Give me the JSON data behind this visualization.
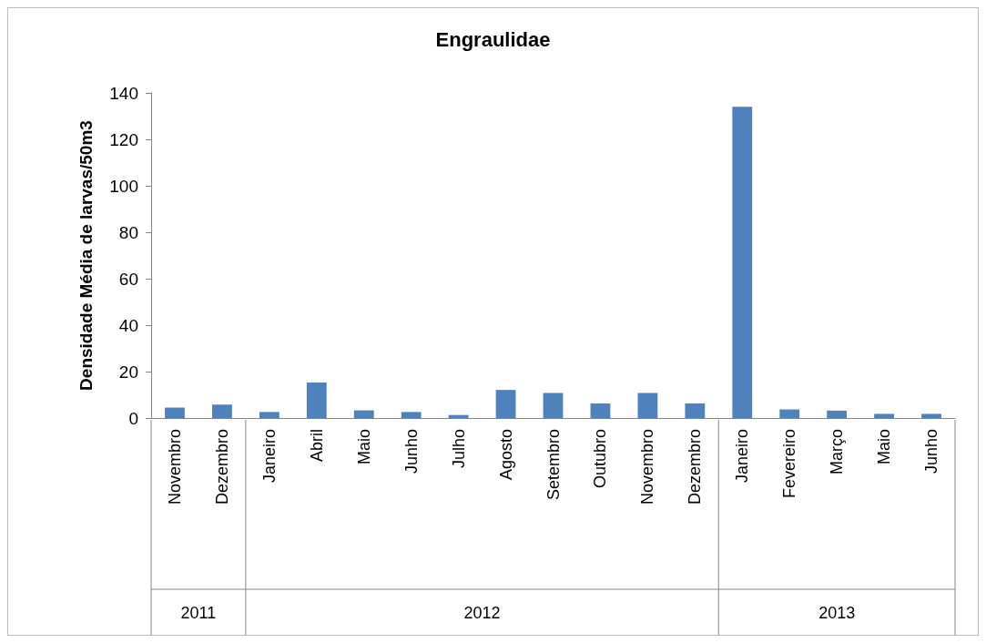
{
  "chart_data": {
    "type": "bar",
    "title": "Engraulidae",
    "ylabel": "Densidade Média de larvas/50m3",
    "categories": [
      "Novembro",
      "Dezembro",
      "Janeiro",
      "Abril",
      "Maio",
      "Junho",
      "Julho",
      "Agosto",
      "Setembro",
      "Outubro",
      "Novembro",
      "Dezembro",
      "Janeiro",
      "Fevereiro",
      "Março",
      "Maio",
      "Junho"
    ],
    "values": [
      4.5,
      5.8,
      2.6,
      15.3,
      3.3,
      2.6,
      1.3,
      12.1,
      10.8,
      6.3,
      10.8,
      6.3,
      134,
      3.7,
      3.2,
      1.8,
      1.8
    ],
    "color": "#4f81bd",
    "ylim": [
      0,
      140
    ],
    "yticks": [
      0,
      20,
      40,
      60,
      80,
      100,
      120,
      140
    ],
    "grid": false,
    "annotations": [
      "2011",
      "2012",
      "2013"
    ]
  }
}
